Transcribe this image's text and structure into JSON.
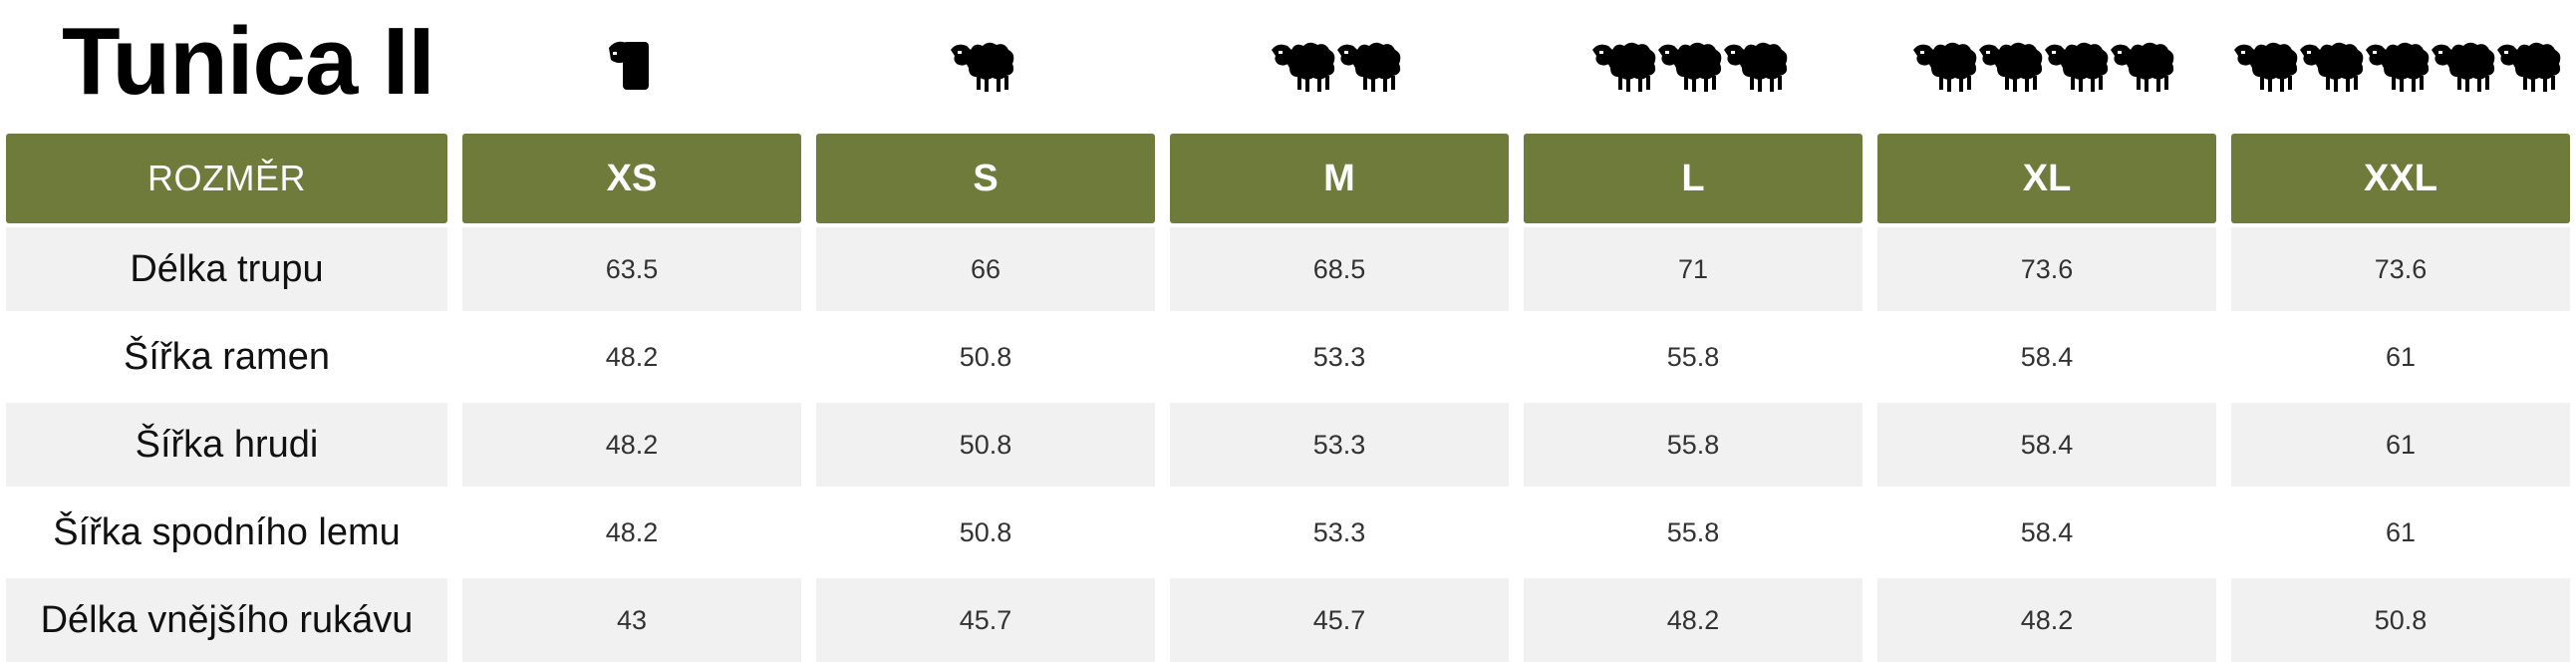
{
  "title": "Tunica II",
  "header_label": "ROZMĚR",
  "sizes": [
    {
      "label": "XS",
      "sheep_count": 1
    },
    {
      "label": "S",
      "sheep_count": 1
    },
    {
      "label": "M",
      "sheep_count": 2
    },
    {
      "label": "L",
      "sheep_count": 3
    },
    {
      "label": "XL",
      "sheep_count": 4
    },
    {
      "label": "XXL",
      "sheep_count": 5
    }
  ],
  "rows": [
    {
      "label": "Délka trupu",
      "values": [
        "63.5",
        "66",
        "68.5",
        "71",
        "73.6",
        "73.6"
      ]
    },
    {
      "label": "Šířka ramen",
      "values": [
        "48.2",
        "50.8",
        "53.3",
        "55.8",
        "58.4",
        "61"
      ]
    },
    {
      "label": "Šířka hrudi",
      "values": [
        "48.2",
        "50.8",
        "53.3",
        "55.8",
        "58.4",
        "61"
      ]
    },
    {
      "label": "Šířka spodního lemu",
      "values": [
        "48.2",
        "50.8",
        "53.3",
        "55.8",
        "58.4",
        "61"
      ]
    },
    {
      "label": "Délka vnějšího rukávu",
      "values": [
        "43",
        "45.7",
        "45.7",
        "48.2",
        "48.2",
        "50.8"
      ]
    }
  ],
  "colors": {
    "header_bg": "#6f7b3b",
    "stripe_bg": "#f1f1f2"
  },
  "icon": "sheep-icon"
}
